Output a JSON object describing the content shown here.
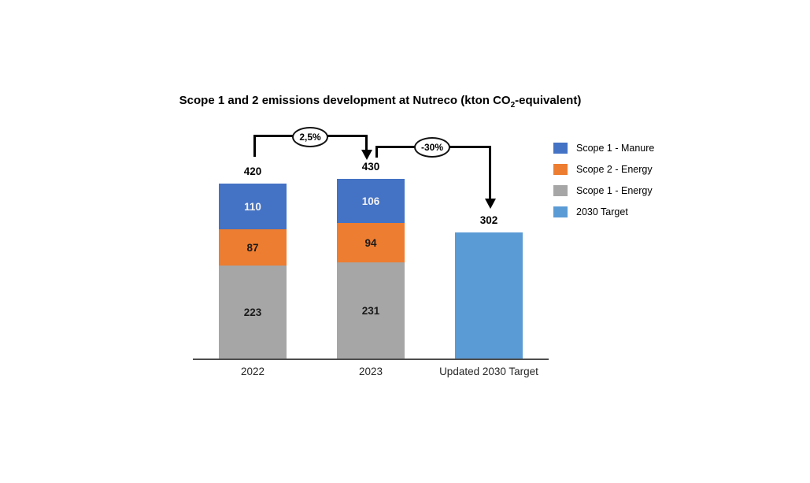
{
  "title": {
    "prefix": "Scope 1 and 2 emissions development at Nutreco (kton CO",
    "subscript": "2",
    "suffix": "-equivalent)"
  },
  "legend": {
    "position": "right",
    "items": [
      {
        "label": "Scope 1 - Manure",
        "color": "#4472c4"
      },
      {
        "label": "Scope 2 - Energy",
        "color": "#ed7d31"
      },
      {
        "label": "Scope 1 - Energy",
        "color": "#a6a6a6"
      },
      {
        "label": "2030 Target",
        "color": "#5b9bd5"
      }
    ]
  },
  "chart_data": {
    "type": "bar",
    "stacked": true,
    "title": "Scope 1 and 2 emissions development at Nutreco (kton CO2-equivalent)",
    "xlabel": "",
    "ylabel": "",
    "value_axis_visible": false,
    "grid": false,
    "legend_position": "right",
    "categories": [
      "2022",
      "2023",
      "Updated 2030 Target"
    ],
    "series": [
      {
        "name": "Scope 1 - Energy",
        "color": "#a6a6a6",
        "label_color": "#1a1a1a",
        "values": [
          223,
          231,
          0
        ]
      },
      {
        "name": "Scope 2 - Energy",
        "color": "#ed7d31",
        "label_color": "#1a1a1a",
        "values": [
          87,
          94,
          0
        ]
      },
      {
        "name": "Scope 1 - Manure",
        "color": "#4472c4",
        "label_color": "#f2f2f2",
        "values": [
          110,
          106,
          0
        ]
      },
      {
        "name": "2030 Target",
        "color": "#5b9bd5",
        "label_color": "#1a1a1a",
        "values": [
          0,
          0,
          302
        ]
      }
    ],
    "totals": [
      420,
      430,
      302
    ],
    "annotations": [
      {
        "label": "2,5%",
        "from": "2022",
        "to": "2023"
      },
      {
        "label": "-30%",
        "from": "2023",
        "to": "Updated 2030 Target"
      }
    ]
  }
}
